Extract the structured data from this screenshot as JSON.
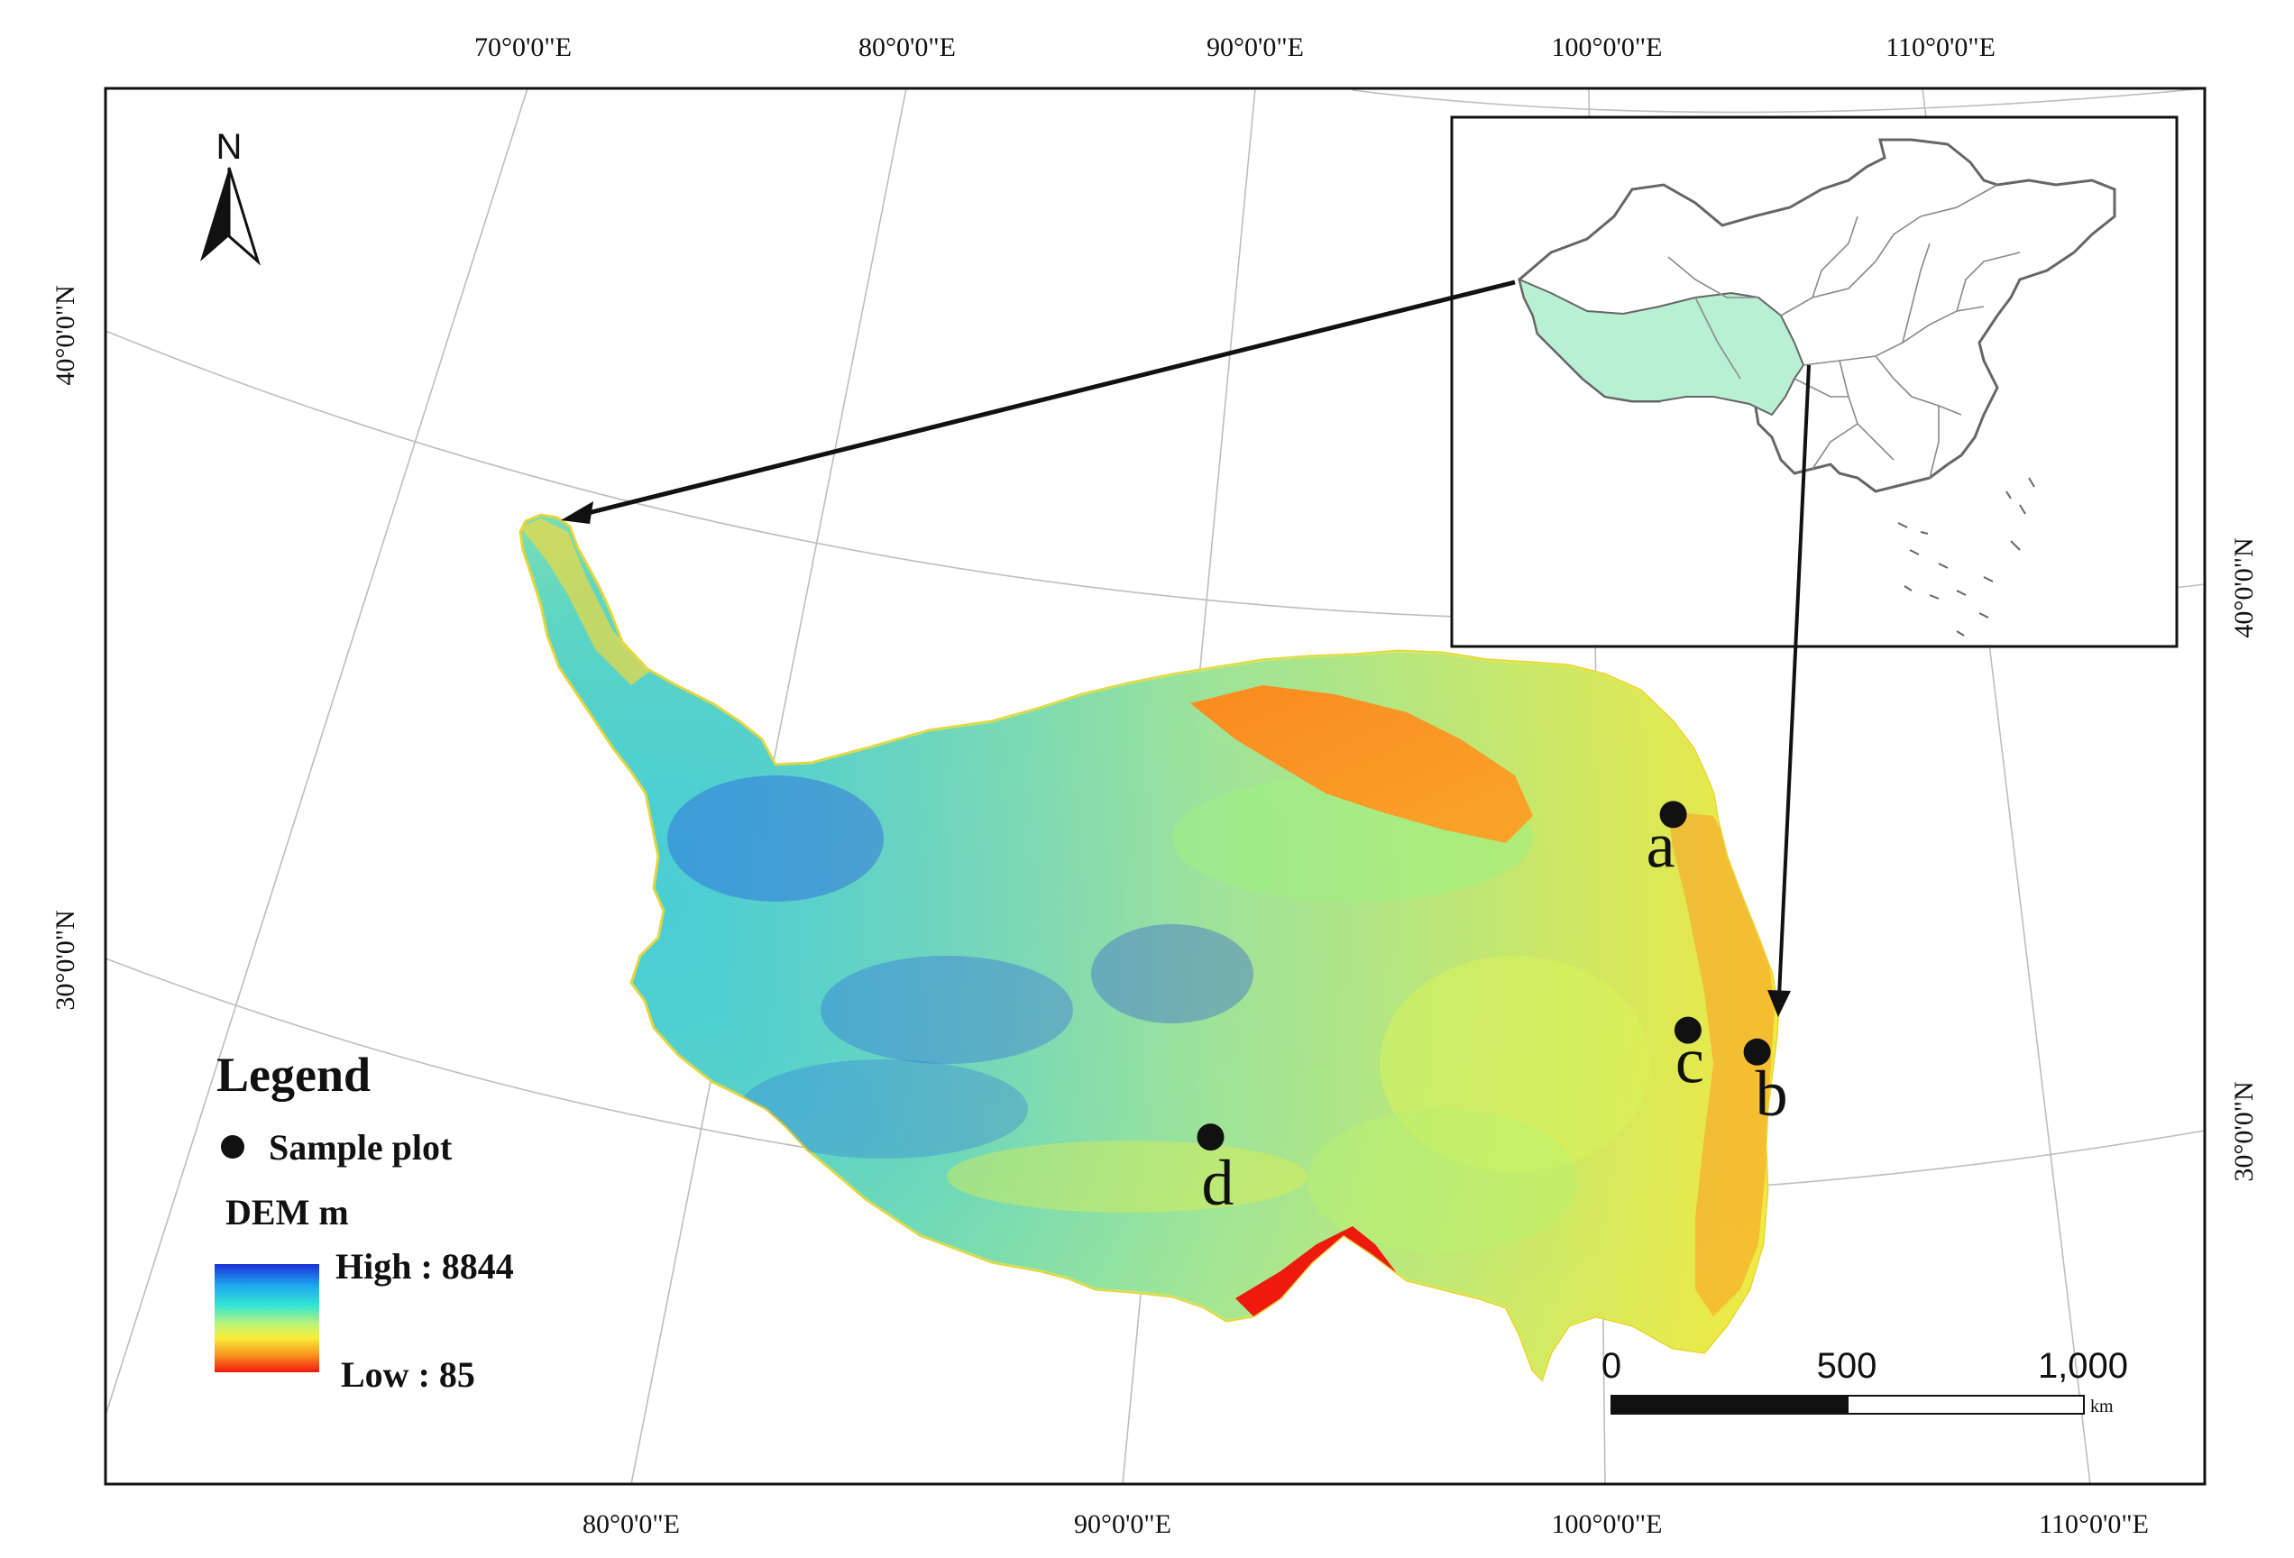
{
  "top_longitudes": [
    "70°0'0\"E",
    "80°0'0\"E",
    "90°0'0\"E",
    "100°0'0\"E",
    "110°0'0\"E"
  ],
  "bottom_longitudes": [
    "80°0'0\"E",
    "90°0'0\"E",
    "100°0'0\"E",
    "110°0'0\"E"
  ],
  "left_latitudes": [
    "40°0'0\"N",
    "30°0'0\"N"
  ],
  "right_latitudes": [
    "40°0'0\"N",
    "30°0'0\"N"
  ],
  "north_arrow": {
    "label": "N",
    "icon": "north-arrow-icon"
  },
  "sample_plots": [
    {
      "label": "a",
      "latitude": 36.7,
      "longitude": 101.7
    },
    {
      "label": "b",
      "latitude": 31.8,
      "longitude": 103.5
    },
    {
      "label": "c",
      "latitude": 32.2,
      "longitude": 101.9
    },
    {
      "label": "d",
      "latitude": 29.6,
      "longitude": 91.0
    }
  ],
  "legend": {
    "title": "Legend",
    "sample_plot_label": "Sample plot",
    "dem_label": "DEM m",
    "high_label": "High : 8844",
    "low_label": "Low : 85",
    "ramp_colors": [
      "#1a2fd6",
      "#1fa8f0",
      "#33e5d3",
      "#b9f27a",
      "#f7ef3a",
      "#fb9420",
      "#ee1a0e"
    ]
  },
  "scale_bar": {
    "ticks": [
      "0",
      "500",
      "1,000"
    ],
    "unit": "km"
  },
  "colors": {
    "inset_region_fill": "#b8f0d3",
    "frame": "#111111",
    "graticule": "#bdbdbd"
  }
}
